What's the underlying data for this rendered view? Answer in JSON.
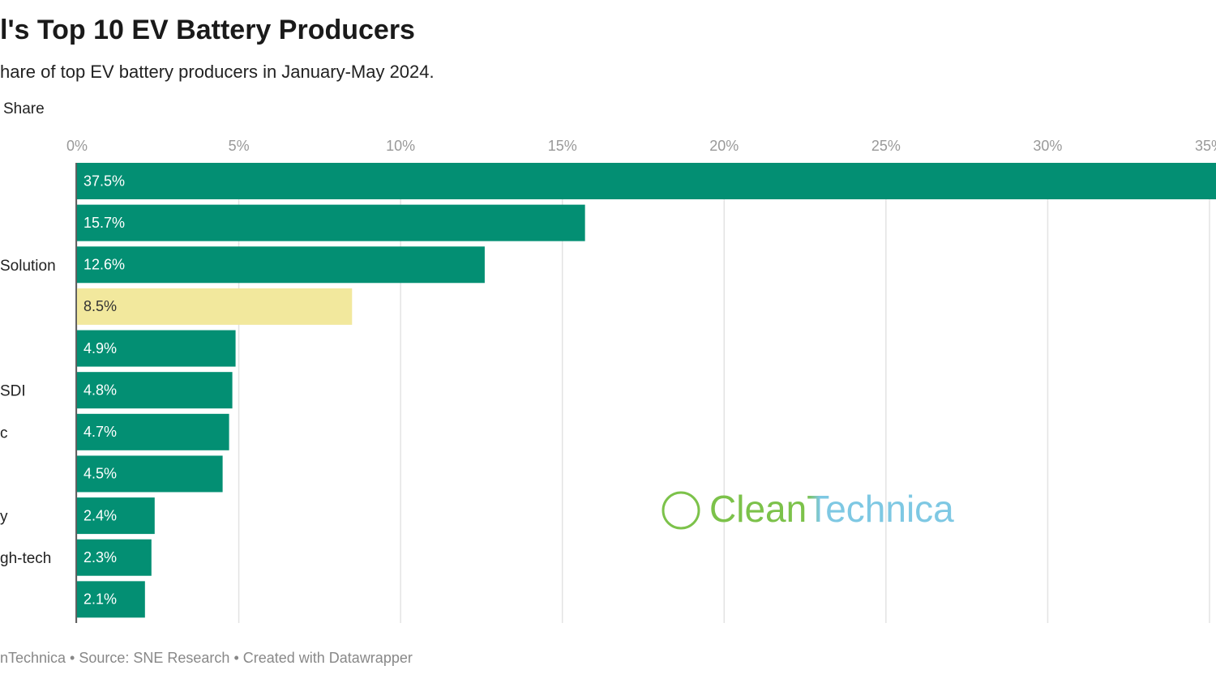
{
  "chart_data": {
    "type": "bar",
    "title": "l's Top 10 EV Battery Producers",
    "subtitle": "hare of top EV battery producers in January-May 2024.",
    "axis_label": "Share",
    "categories": [
      null,
      null,
      "Solution",
      null,
      null,
      "SDI",
      "c",
      null,
      "y",
      "gh-tech",
      null
    ],
    "values": [
      37.5,
      15.7,
      12.6,
      8.5,
      4.9,
      4.8,
      4.7,
      4.5,
      2.4,
      2.3,
      2.1
    ],
    "value_labels": [
      "37.5%",
      "15.7%",
      "12.6%",
      "8.5%",
      "4.9%",
      "4.8%",
      "4.7%",
      "4.5%",
      "2.4%",
      "2.3%",
      "2.1%"
    ],
    "colors": [
      "#038f73",
      "#038f73",
      "#038f73",
      "#f2e89d",
      "#038f73",
      "#038f73",
      "#038f73",
      "#038f73",
      "#038f73",
      "#038f73",
      "#038f73"
    ],
    "xlim": [
      0,
      35
    ],
    "xticks": [
      {
        "value": 0,
        "label": "0%"
      },
      {
        "value": 5,
        "label": "5%"
      },
      {
        "value": 10,
        "label": "10%"
      },
      {
        "value": 15,
        "label": "15%"
      },
      {
        "value": 20,
        "label": "20%"
      },
      {
        "value": 25,
        "label": "25%"
      },
      {
        "value": 30,
        "label": "30%"
      },
      {
        "value": 35,
        "label": "35%"
      }
    ],
    "grid": true,
    "watermark": "CleanTechnica",
    "footer": "nTechnica • Source: SNE Research • Created with Datawrapper"
  }
}
